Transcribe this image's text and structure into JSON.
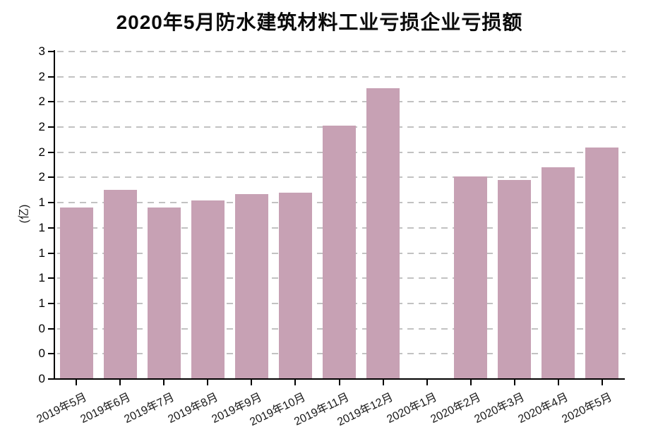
{
  "chart_data": {
    "type": "bar",
    "title": "2020年5月防水建筑材料工业亏损企业亏损额",
    "y_unit_label": "(亿)",
    "xlabel": "",
    "categories": [
      "2019年5月",
      "2019年6月",
      "2019年7月",
      "2019年8月",
      "2019年9月",
      "2019年10月",
      "2019年11月",
      "2019年12月",
      "2020年1月",
      "2020年2月",
      "2020年3月",
      "2020年4月",
      "2020年5月"
    ],
    "values": [
      1.36,
      1.5,
      1.36,
      1.42,
      1.47,
      1.48,
      2.01,
      2.31,
      null,
      1.61,
      1.58,
      1.68,
      1.84
    ],
    "ylim": [
      0,
      2.6
    ],
    "ytick_values": [
      0,
      0.2,
      0.4,
      0.6,
      0.8,
      1.0,
      1.2,
      1.4,
      1.6,
      1.8,
      2.0,
      2.2,
      2.4,
      2.6
    ],
    "ytick_labels_displayed": [
      "0",
      "0",
      "0",
      "1",
      "1",
      "1",
      "1",
      "1",
      "2",
      "2",
      "2",
      "2",
      "2",
      "3"
    ],
    "grid": "horizontal-dashed",
    "legend": "none",
    "colors": {
      "bar": "#c7a1b4",
      "grid": "#c2c2c2",
      "axis": "#000000",
      "text": "#1a1a1a"
    }
  }
}
